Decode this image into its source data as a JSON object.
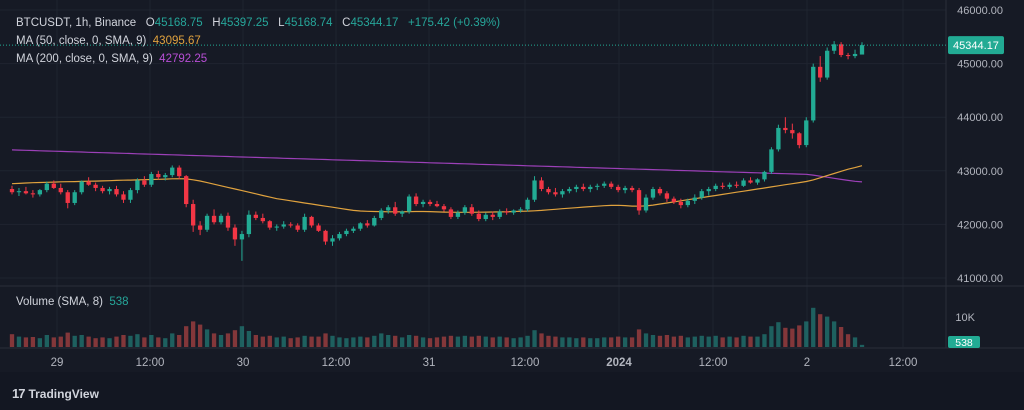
{
  "legend": {
    "symbol": "BTCUSDT, 1h, Binance",
    "o_label": "O",
    "o_val": "45168.75",
    "h_label": "H",
    "h_val": "45397.25",
    "l_label": "L",
    "l_val": "45168.74",
    "c_label": "C",
    "c_val": "45344.17",
    "change": "+175.42 (+0.39%)",
    "ma50_label": "MA (50, close, 0, SMA, 9)",
    "ma50_val": "43095.67",
    "ma200_label": "MA (200, close, 0, SMA, 9)",
    "ma200_val": "42792.25",
    "vol_label": "Volume (SMA, 8)",
    "vol_val": "538"
  },
  "colors": {
    "up": "#26a69a",
    "down": "#ef5350",
    "up_bright": "#22ab94",
    "down_bright": "#f23645",
    "ma50": "#e0a23e",
    "ma200": "#9c40b8",
    "grid": "#1f2430",
    "axis_text": "#b2b5be",
    "price_badge": "#22ab94"
  },
  "price_axis": {
    "ticks": [
      "46000.00",
      "45000.00",
      "44000.00",
      "43000.00",
      "42000.00",
      "41000.00"
    ],
    "last_price": "45344.17"
  },
  "volume_axis": {
    "ticks": [
      "10K"
    ],
    "last_volume": "538"
  },
  "time_axis": {
    "ticks": [
      "29",
      "12:00",
      "30",
      "12:00",
      "31",
      "12:00",
      "2024",
      "12:00",
      "2",
      "12:00"
    ]
  },
  "branding": {
    "logo_mark": "17",
    "name": "TradingView"
  },
  "chart_data": {
    "type": "candlestick",
    "symbol": "BTCUSDT",
    "interval": "1h",
    "exchange": "Binance",
    "ylim": [
      40900,
      46050
    ],
    "volume_ylim": [
      0,
      15000
    ],
    "candles": [
      [
        42660,
        42720,
        42560,
        42600
      ],
      [
        42600,
        42680,
        42530,
        42620
      ],
      [
        42620,
        42700,
        42560,
        42580
      ],
      [
        42580,
        42640,
        42500,
        42560
      ],
      [
        42560,
        42660,
        42520,
        42640
      ],
      [
        42640,
        42800,
        42600,
        42760
      ],
      [
        42760,
        42820,
        42660,
        42680
      ],
      [
        42680,
        42760,
        42560,
        42600
      ],
      [
        42600,
        42640,
        42300,
        42400
      ],
      [
        42400,
        42640,
        42360,
        42600
      ],
      [
        42600,
        42820,
        42560,
        42800
      ],
      [
        42800,
        42880,
        42720,
        42740
      ],
      [
        42740,
        42780,
        42620,
        42680
      ],
      [
        42680,
        42720,
        42580,
        42620
      ],
      [
        42620,
        42700,
        42560,
        42660
      ],
      [
        42660,
        42720,
        42520,
        42560
      ],
      [
        42560,
        42620,
        42400,
        42460
      ],
      [
        42460,
        42680,
        42400,
        42640
      ],
      [
        42640,
        42860,
        42580,
        42820
      ],
      [
        42820,
        42900,
        42700,
        42740
      ],
      [
        42740,
        42980,
        42700,
        42940
      ],
      [
        42940,
        43000,
        42840,
        42880
      ],
      [
        42880,
        42960,
        42820,
        42920
      ],
      [
        42920,
        43100,
        42880,
        43060
      ],
      [
        43060,
        43100,
        42840,
        42900
      ],
      [
        42900,
        42920,
        42320,
        42380
      ],
      [
        42380,
        42460,
        41860,
        41980
      ],
      [
        41980,
        42060,
        41800,
        41900
      ],
      [
        41900,
        42200,
        41860,
        42160
      ],
      [
        42160,
        42280,
        42000,
        42040
      ],
      [
        42040,
        42200,
        42000,
        42160
      ],
      [
        42160,
        42220,
        41880,
        41940
      ],
      [
        41940,
        42000,
        41600,
        41720
      ],
      [
        41720,
        41880,
        41320,
        41820
      ],
      [
        41820,
        42260,
        41760,
        42180
      ],
      [
        42180,
        42240,
        42080,
        42120
      ],
      [
        42120,
        42200,
        42020,
        42060
      ],
      [
        42060,
        42080,
        41900,
        41940
      ],
      [
        41940,
        42000,
        41880,
        41960
      ],
      [
        41960,
        42060,
        41920,
        42000
      ],
      [
        42000,
        42040,
        41940,
        41980
      ],
      [
        41980,
        42020,
        41860,
        41900
      ],
      [
        41900,
        42200,
        41860,
        42140
      ],
      [
        42140,
        42160,
        41940,
        41980
      ],
      [
        41980,
        42020,
        41860,
        41880
      ],
      [
        41880,
        41900,
        41620,
        41680
      ],
      [
        41680,
        41800,
        41600,
        41740
      ],
      [
        41740,
        41860,
        41700,
        41820
      ],
      [
        41820,
        41920,
        41780,
        41880
      ],
      [
        41880,
        41960,
        41840,
        41920
      ],
      [
        41920,
        42040,
        41880,
        42020
      ],
      [
        42020,
        42080,
        41940,
        41980
      ],
      [
        41980,
        42160,
        41960,
        42120
      ],
      [
        42120,
        42300,
        42080,
        42260
      ],
      [
        42260,
        42360,
        42200,
        42320
      ],
      [
        42320,
        42420,
        42160,
        42200
      ],
      [
        42200,
        42260,
        42140,
        42240
      ],
      [
        42240,
        42560,
        42200,
        42520
      ],
      [
        42520,
        42580,
        42340,
        42380
      ],
      [
        42380,
        42460,
        42320,
        42420
      ],
      [
        42420,
        42460,
        42340,
        42380
      ],
      [
        42380,
        42440,
        42320,
        42340
      ],
      [
        42340,
        42380,
        42240,
        42280
      ],
      [
        42280,
        42320,
        42100,
        42140
      ],
      [
        42140,
        42260,
        42100,
        42220
      ],
      [
        42220,
        42360,
        42180,
        42320
      ],
      [
        42320,
        42380,
        42160,
        42200
      ],
      [
        42200,
        42260,
        42060,
        42100
      ],
      [
        42100,
        42220,
        42060,
        42180
      ],
      [
        42180,
        42240,
        42080,
        42140
      ],
      [
        42140,
        42280,
        42100,
        42240
      ],
      [
        42240,
        42300,
        42180,
        42220
      ],
      [
        42220,
        42280,
        42180,
        42260
      ],
      [
        42260,
        42320,
        42220,
        42280
      ],
      [
        42280,
        42500,
        42240,
        42460
      ],
      [
        42460,
        42900,
        42420,
        42820
      ],
      [
        42820,
        42880,
        42620,
        42660
      ],
      [
        42660,
        42700,
        42560,
        42600
      ],
      [
        42600,
        42680,
        42520,
        42560
      ],
      [
        42560,
        42660,
        42500,
        42620
      ],
      [
        42620,
        42700,
        42580,
        42660
      ],
      [
        42660,
        42740,
        42600,
        42700
      ],
      [
        42700,
        42760,
        42620,
        42660
      ],
      [
        42660,
        42740,
        42600,
        42700
      ],
      [
        42700,
        42760,
        42640,
        42720
      ],
      [
        42720,
        42800,
        42680,
        42760
      ],
      [
        42760,
        42800,
        42660,
        42700
      ],
      [
        42700,
        42740,
        42600,
        42640
      ],
      [
        42640,
        42720,
        42580,
        42680
      ],
      [
        42680,
        42720,
        42600,
        42640
      ],
      [
        42640,
        42680,
        42180,
        42260
      ],
      [
        42260,
        42560,
        42220,
        42500
      ],
      [
        42500,
        42700,
        42460,
        42660
      ],
      [
        42660,
        42700,
        42540,
        42580
      ],
      [
        42580,
        42620,
        42420,
        42480
      ],
      [
        42480,
        42520,
        42380,
        42420
      ],
      [
        42420,
        42480,
        42300,
        42360
      ],
      [
        42360,
        42480,
        42320,
        42440
      ],
      [
        42440,
        42560,
        42380,
        42500
      ],
      [
        42500,
        42660,
        42460,
        42620
      ],
      [
        42620,
        42700,
        42540,
        42660
      ],
      [
        42660,
        42760,
        42620,
        42720
      ],
      [
        42720,
        42780,
        42660,
        42700
      ],
      [
        42700,
        42780,
        42660,
        42740
      ],
      [
        42740,
        42800,
        42680,
        42720
      ],
      [
        42720,
        42860,
        42700,
        42820
      ],
      [
        42820,
        42880,
        42760,
        42780
      ],
      [
        42780,
        42860,
        42740,
        42840
      ],
      [
        42840,
        43000,
        42800,
        42980
      ],
      [
        42980,
        43440,
        42940,
        43400
      ],
      [
        43400,
        43860,
        43360,
        43800
      ],
      [
        43800,
        44000,
        43700,
        43760
      ],
      [
        43760,
        43880,
        43600,
        43700
      ],
      [
        43700,
        43720,
        43420,
        43480
      ],
      [
        43480,
        44000,
        43440,
        43940
      ],
      [
        43940,
        45000,
        43900,
        44940
      ],
      [
        44940,
        45140,
        44660,
        44740
      ],
      [
        44740,
        45300,
        44700,
        45240
      ],
      [
        45240,
        45420,
        45180,
        45360
      ],
      [
        45360,
        45400,
        45120,
        45160
      ],
      [
        45160,
        45200,
        45080,
        45140
      ],
      [
        45140,
        45260,
        45100,
        45180
      ],
      [
        45168.75,
        45397.25,
        45168.74,
        45344.17
      ]
    ],
    "volume": [
      3200,
      2600,
      2400,
      2500,
      2200,
      3000,
      2400,
      2600,
      3600,
      2800,
      3000,
      2600,
      2200,
      2400,
      2200,
      2600,
      3000,
      2800,
      3200,
      2400,
      3000,
      2400,
      2200,
      3400,
      3000,
      5200,
      6400,
      5600,
      4400,
      3400,
      3000,
      3400,
      4200,
      5200,
      4000,
      3000,
      2600,
      2800,
      2400,
      2600,
      2200,
      2400,
      2800,
      2600,
      2600,
      3400,
      2800,
      2400,
      2200,
      2400,
      2600,
      2400,
      2800,
      3400,
      3000,
      2800,
      2400,
      3000,
      2800,
      2400,
      2200,
      2400,
      2600,
      2800,
      2600,
      2800,
      2600,
      2800,
      2600,
      2400,
      2600,
      2400,
      2200,
      2400,
      2800,
      4200,
      3400,
      2800,
      2600,
      2400,
      2400,
      2200,
      2400,
      2200,
      2200,
      2400,
      2400,
      2600,
      2400,
      2400,
      4400,
      3400,
      3000,
      2800,
      3000,
      2600,
      2800,
      2400,
      2600,
      2800,
      2600,
      2800,
      2400,
      2600,
      2400,
      2800,
      2600,
      2600,
      3200,
      5200,
      6200,
      4800,
      4600,
      5400,
      6400,
      9800,
      8200,
      7600,
      6400,
      5000,
      3200,
      2400,
      538
    ],
    "ma50": [
      42760,
      42765,
      42772,
      42778,
      42782,
      42786,
      42790,
      42794,
      42796,
      42798,
      42802,
      42806,
      42808,
      42812,
      42816,
      42820,
      42824,
      42826,
      42830,
      42834,
      42838,
      42842,
      42846,
      42850,
      42852,
      42848,
      42832,
      42810,
      42780,
      42750,
      42720,
      42690,
      42660,
      42630,
      42600,
      42570,
      42540,
      42510,
      42480,
      42460,
      42440,
      42420,
      42400,
      42380,
      42360,
      42340,
      42320,
      42300,
      42280,
      42262,
      42250,
      42245,
      42240,
      42238,
      42236,
      42235,
      42236,
      42238,
      42240,
      42240,
      42238,
      42234,
      42230,
      42228,
      42226,
      42226,
      42226,
      42228,
      42230,
      42232,
      42234,
      42236,
      42240,
      42244,
      42248,
      42254,
      42262,
      42272,
      42282,
      42292,
      42302,
      42312,
      42322,
      42332,
      42340,
      42348,
      42354,
      42356,
      42350,
      42342,
      42340,
      42346,
      42360,
      42380,
      42400,
      42420,
      42440,
      42460,
      42480,
      42500,
      42520,
      42540,
      42560,
      42580,
      42600,
      42620,
      42640,
      42660,
      42680,
      42700,
      42720,
      42740,
      42760,
      42780,
      42800,
      42830,
      42870,
      42910,
      42950,
      42990,
      43030,
      43060,
      43095.67
    ],
    "ma200": [
      43390,
      43386,
      43382,
      43378,
      43374,
      43370,
      43366,
      43362,
      43358,
      43354,
      43350,
      43346,
      43342,
      43338,
      43334,
      43330,
      43326,
      43322,
      43318,
      43314,
      43310,
      43306,
      43302,
      43298,
      43294,
      43290,
      43286,
      43282,
      43278,
      43274,
      43270,
      43266,
      43262,
      43258,
      43254,
      43250,
      43246,
      43242,
      43238,
      43234,
      43230,
      43226,
      43222,
      43218,
      43214,
      43210,
      43206,
      43202,
      43198,
      43194,
      43190,
      43186,
      43182,
      43178,
      43174,
      43170,
      43166,
      43162,
      43158,
      43154,
      43150,
      43146,
      43142,
      43138,
      43134,
      43130,
      43126,
      43122,
      43118,
      43114,
      43110,
      43106,
      43102,
      43098,
      43094,
      43090,
      43086,
      43082,
      43078,
      43074,
      43070,
      43066,
      43062,
      43058,
      43054,
      43050,
      43046,
      43042,
      43038,
      43034,
      43030,
      43026,
      43022,
      43018,
      43014,
      43010,
      43006,
      43002,
      42998,
      42994,
      42990,
      42986,
      42982,
      42978,
      42974,
      42970,
      42966,
      42962,
      42958,
      42954,
      42950,
      42946,
      42942,
      42938,
      42934,
      42920,
      42900,
      42880,
      42860,
      42840,
      42820,
      42805,
      42792.25
    ]
  }
}
